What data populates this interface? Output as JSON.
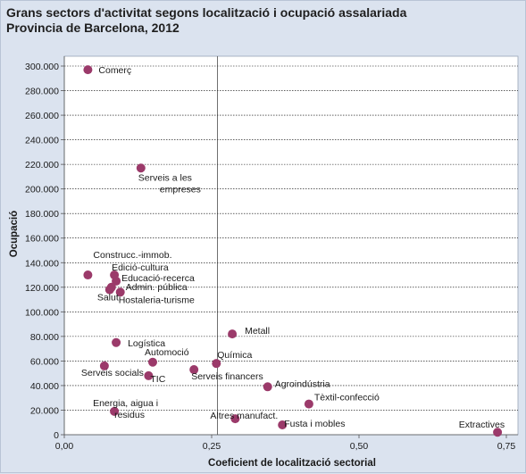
{
  "header": {
    "title_line1": "Grans sectors d'activitat segons localització i ocupació assalariada",
    "title_line2": "Provincia de Barcelona, 2012"
  },
  "chart_data": {
    "type": "scatter",
    "xlabel": "Coeficient de localització sectorial",
    "ylabel": "Ocupació",
    "xlim": [
      0,
      0.75
    ],
    "ylim": [
      0,
      300000
    ],
    "x_ticks": [
      "0,00",
      "0,25",
      "0,50",
      "0,75"
    ],
    "y_ticks": [
      "0",
      "20.000",
      "40.000",
      "60.000",
      "80.000",
      "100.000",
      "120.000",
      "140.000",
      "160.000",
      "180.000",
      "200.000",
      "220.000",
      "240.000",
      "260.000",
      "280.000",
      "300.000"
    ],
    "reference_line_x": 0.26,
    "grid": "horizontal",
    "marker_color": "#9b3a6a",
    "points": [
      {
        "label": "Comerç",
        "x": 0.04,
        "y": 297000
      },
      {
        "label": "Serveis a les empreses",
        "x": 0.13,
        "y": 217000
      },
      {
        "label": "Construcc.-immob.",
        "x": 0.04,
        "y": 130000
      },
      {
        "label": "Edició-cultura",
        "x": 0.085,
        "y": 130000
      },
      {
        "label": "Educació-recerca",
        "x": 0.088,
        "y": 125000
      },
      {
        "label": "Admin. pública",
        "x": 0.08,
        "y": 120000
      },
      {
        "label": "Salut",
        "x": 0.077,
        "y": 118000
      },
      {
        "label": "Hostaleria-turisme",
        "x": 0.095,
        "y": 116000
      },
      {
        "label": "Metall",
        "x": 0.285,
        "y": 82000
      },
      {
        "label": "Logística",
        "x": 0.088,
        "y": 75000
      },
      {
        "label": "Automoció",
        "x": 0.15,
        "y": 59000
      },
      {
        "label": "Química",
        "x": 0.258,
        "y": 58000
      },
      {
        "label": "Serveis socials",
        "x": 0.068,
        "y": 56000
      },
      {
        "label": "Serveis financers",
        "x": 0.22,
        "y": 53000
      },
      {
        "label": "TIC",
        "x": 0.143,
        "y": 48000
      },
      {
        "label": "Agroindústria",
        "x": 0.345,
        "y": 39000
      },
      {
        "label": "Tèxtil-confecció",
        "x": 0.415,
        "y": 25000
      },
      {
        "label": "Energia, aigua i residus",
        "x": 0.085,
        "y": 19000
      },
      {
        "label": "Altres manufact.",
        "x": 0.29,
        "y": 13000
      },
      {
        "label": "Fusta i mobles",
        "x": 0.37,
        "y": 8000
      },
      {
        "label": "Extractives",
        "x": 0.735,
        "y": 2000
      }
    ]
  }
}
